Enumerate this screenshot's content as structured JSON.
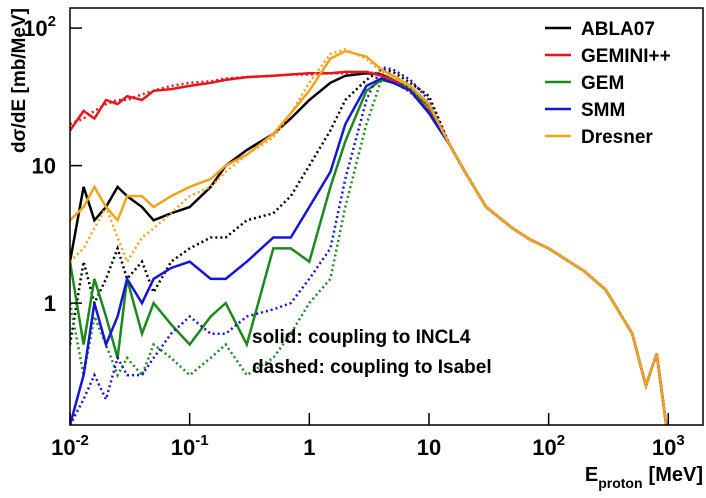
{
  "chart_data": {
    "type": "line",
    "ylabel": "dσ/dE [mb/MeV]",
    "xlabel": {
      "main": "E",
      "sub": "proton",
      "unit": "[MeV]"
    },
    "annotations": [
      "solid: coupling to INCL4",
      "dashed: coupling to Isabel"
    ],
    "log_x": true,
    "log_y": true,
    "legend": "top-right",
    "xlim": [
      0.01,
      1950
    ],
    "ylim": [
      0.13,
      140
    ],
    "xticks": [
      {
        "value": 0.01,
        "label": "10",
        "exponent": "-2"
      },
      {
        "value": 0.1,
        "label": "10",
        "exponent": "-1"
      },
      1,
      10,
      {
        "value": 100,
        "label": "10",
        "exponent": "2"
      },
      {
        "value": 1000,
        "label": "10",
        "exponent": "3"
      }
    ],
    "yticks": [
      1,
      10,
      {
        "value": 100,
        "label": "10",
        "exponent": "2"
      }
    ],
    "x": [
      0.01,
      0.013,
      0.016,
      0.02,
      0.025,
      0.03,
      0.04,
      0.05,
      0.07,
      0.1,
      0.15,
      0.2,
      0.3,
      0.5,
      0.7,
      1,
      1.5,
      2,
      3,
      4,
      5,
      7,
      10,
      15,
      20,
      30,
      50,
      70,
      100,
      200,
      300,
      500,
      650,
      800,
      1000
    ],
    "series": [
      {
        "name": "ABLA07",
        "color": "#000000",
        "values": [
          2,
          7,
          4,
          5,
          7,
          6,
          5,
          4,
          4.5,
          5,
          7,
          10,
          13,
          17,
          22,
          30,
          40,
          45,
          47,
          46,
          42,
          36,
          28,
          14,
          9,
          5,
          3.5,
          2.9,
          2.5,
          1.7,
          1.25,
          0.6,
          0.25,
          0.43,
          0.1
        ],
        "isabel_values": [
          0.5,
          2,
          1,
          1.5,
          2.5,
          1.5,
          2,
          1.2,
          2,
          2.5,
          3,
          3,
          4,
          4.5,
          6,
          10,
          18,
          30,
          42,
          50,
          48,
          40,
          32,
          14,
          9,
          5,
          3.5,
          2.9,
          2.5,
          1.7,
          1.25,
          0.6,
          0.25,
          0.43,
          0.1
        ]
      },
      {
        "name": "GEMINI++",
        "color": "#e8161b",
        "values": [
          18,
          25,
          22,
          30,
          28,
          32,
          30,
          35,
          36,
          38,
          40,
          42,
          44,
          45,
          46,
          47,
          47,
          48,
          48,
          45,
          42,
          35,
          25,
          14,
          9,
          5,
          3.5,
          2.9,
          2.5,
          1.7,
          1.25,
          0.6,
          0.25,
          0.43,
          0.1
        ],
        "isabel_values": [
          20,
          22,
          25,
          28,
          30,
          30,
          33,
          35,
          38,
          40,
          41,
          43,
          44,
          45,
          46,
          46,
          47,
          47,
          48,
          46,
          41,
          34,
          25,
          14,
          9,
          5,
          3.5,
          2.9,
          2.5,
          1.7,
          1.25,
          0.6,
          0.25,
          0.43,
          0.1
        ]
      },
      {
        "name": "GEM",
        "color": "#1a8a1a",
        "values": [
          2,
          0.5,
          1.5,
          0.8,
          0.4,
          1.5,
          0.6,
          1,
          0.7,
          0.5,
          0.8,
          1,
          0.5,
          2.5,
          2.5,
          2,
          7,
          15,
          35,
          42,
          40,
          36,
          27,
          14,
          9,
          5,
          3.5,
          2.9,
          2.5,
          1.7,
          1.25,
          0.6,
          0.25,
          0.43,
          0.1
        ],
        "isabel_values": [
          1,
          0.3,
          0.8,
          0.5,
          0.3,
          0.4,
          0.3,
          0.5,
          0.4,
          0.3,
          0.4,
          0.5,
          0.3,
          0.4,
          0.6,
          1,
          1.5,
          5,
          20,
          42,
          45,
          38,
          28,
          14,
          9,
          5,
          3.5,
          2.9,
          2.5,
          1.7,
          1.25,
          0.6,
          0.25,
          0.43,
          0.1
        ]
      },
      {
        "name": "SMM",
        "color": "#1515d8",
        "values": [
          0.13,
          0.3,
          1,
          0.5,
          0.8,
          1.5,
          1,
          1.5,
          1.8,
          2,
          1.5,
          1.5,
          2,
          3,
          3,
          5,
          9,
          20,
          38,
          43,
          40,
          35,
          24,
          14,
          9,
          5,
          3.5,
          2.9,
          2.5,
          1.7,
          1.25,
          0.6,
          0.25,
          0.43,
          0.1
        ],
        "isabel_values": [
          0.13,
          0.2,
          0.3,
          0.2,
          0.4,
          0.3,
          0.3,
          0.4,
          0.6,
          0.8,
          0.6,
          0.6,
          0.8,
          0.9,
          1,
          1.5,
          2.5,
          8,
          30,
          52,
          50,
          42,
          30,
          14,
          9,
          5,
          3.5,
          2.9,
          2.5,
          1.7,
          1.25,
          0.6,
          0.25,
          0.43,
          0.1
        ]
      },
      {
        "name": "Dresner",
        "color": "#f5a21b",
        "values": [
          4,
          5,
          7,
          5,
          4,
          6,
          6,
          5,
          6,
          7,
          8,
          10,
          12,
          17,
          24,
          35,
          60,
          68,
          62,
          50,
          45,
          38,
          28,
          14,
          9,
          5,
          3.5,
          2.9,
          2.5,
          1.7,
          1.25,
          0.6,
          0.25,
          0.43,
          0.1
        ],
        "isabel_values": [
          2,
          2.5,
          3.5,
          5,
          3,
          2,
          3,
          3.5,
          4.5,
          6,
          7,
          9,
          12,
          16,
          24,
          40,
          65,
          70,
          60,
          48,
          44,
          37,
          28,
          14,
          9,
          5,
          3.5,
          2.9,
          2.5,
          1.7,
          1.25,
          0.6,
          0.25,
          0.43,
          0.1
        ]
      }
    ]
  }
}
